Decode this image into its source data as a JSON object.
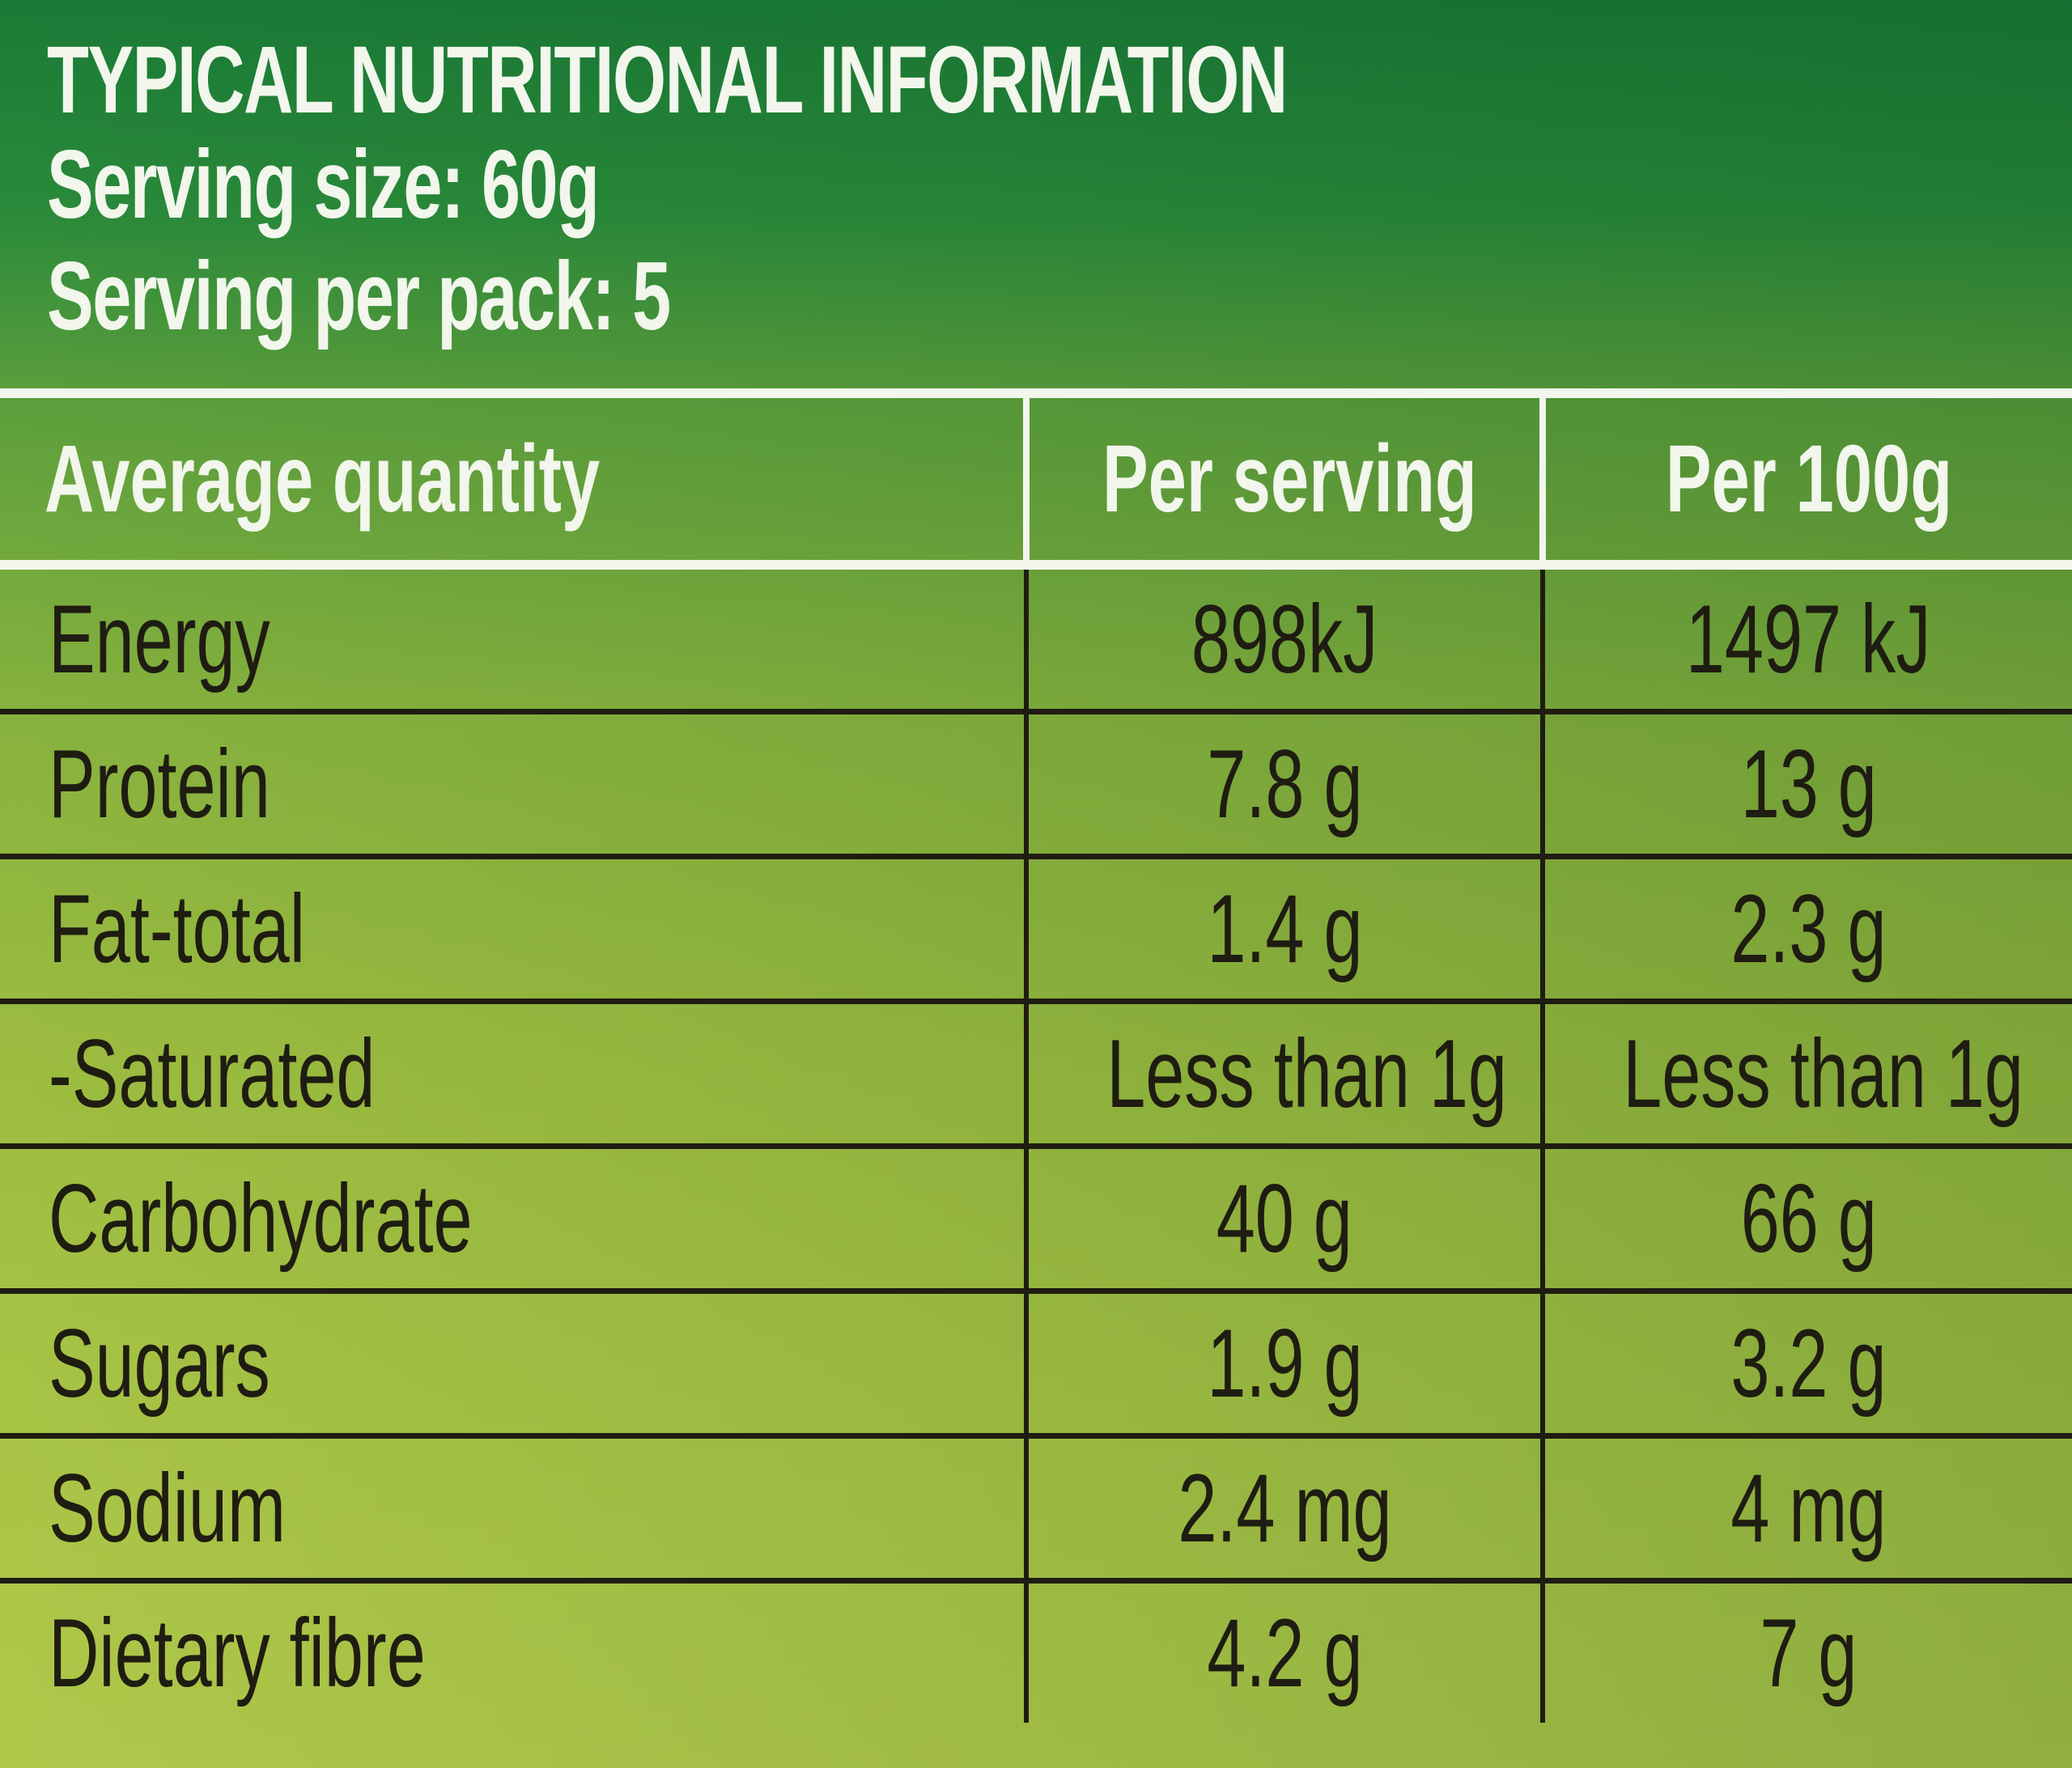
{
  "header": {
    "title": "TYPICAL NUTRITIONAL INFORMATION",
    "serving_size": "Serving size: 60g",
    "servings_per_pack": "Serving per pack: 5"
  },
  "table": {
    "columns": [
      "Average quantity",
      "Per serving",
      "Per 100g"
    ],
    "rows": [
      {
        "nutrient": "Energy",
        "per_serving": "898kJ",
        "per_100g": "1497 kJ"
      },
      {
        "nutrient": "Protein",
        "per_serving": "7.8 g",
        "per_100g": "13 g"
      },
      {
        "nutrient": "Fat-total",
        "per_serving": "1.4 g",
        "per_100g": "2.3 g"
      },
      {
        "nutrient": "-Saturated",
        "per_serving": "Less than 1g",
        "per_100g": "Less than 1g"
      },
      {
        "nutrient": "Carbohydrate",
        "per_serving": "40 g",
        "per_100g": "66 g"
      },
      {
        "nutrient": "Sugars",
        "per_serving": "1.9 g",
        "per_100g": "3.2 g"
      },
      {
        "nutrient": "Sodium",
        "per_serving": "2.4 mg",
        "per_100g": "4 mg"
      },
      {
        "nutrient": "Dietary fibre",
        "per_serving": "4.2 g",
        "per_100g": "7 g"
      }
    ]
  },
  "colors": {
    "header_text": "#f2f6ec",
    "body_text": "#1f1c12",
    "background_top": "#1a7a36",
    "background_bottom": "#b0c84a"
  }
}
